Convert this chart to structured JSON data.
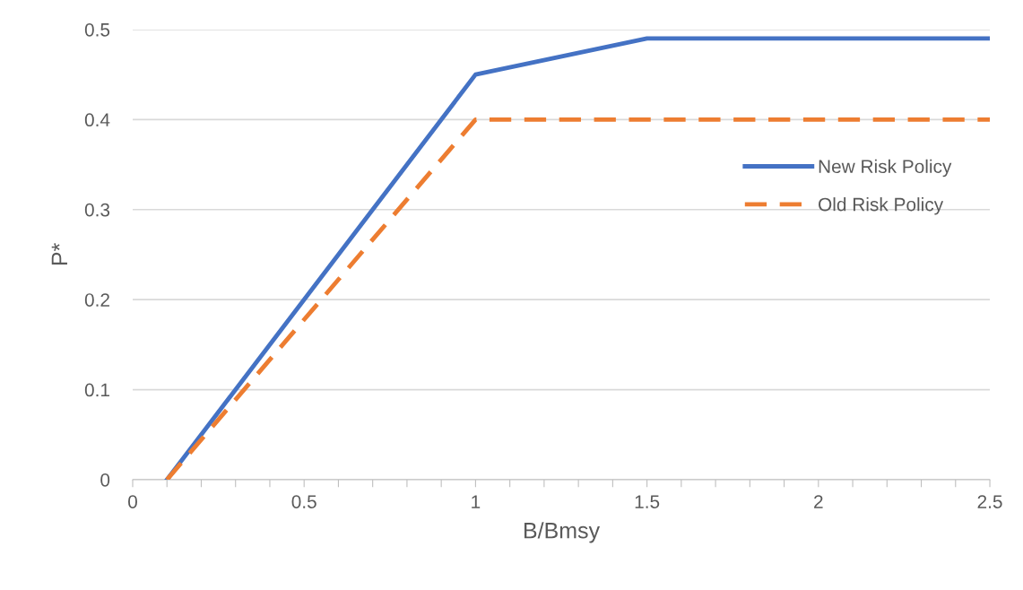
{
  "chart_data": {
    "type": "line",
    "xlabel": "B/Bmsy",
    "ylabel": "P*",
    "series": [
      {
        "name": "New Risk Policy",
        "color": "#4472c4",
        "line_style": "solid",
        "x": [
          0.1,
          1,
          1.5,
          2.5
        ],
        "values": [
          0,
          0.45,
          0.49,
          0.49
        ]
      },
      {
        "name": "Old Risk Policy",
        "color": "#ed7d31",
        "line_style": "dashed",
        "x": [
          0.1,
          1,
          2.5
        ],
        "values": [
          0,
          0.4,
          0.4
        ]
      }
    ],
    "xlim": [
      0,
      2.5
    ],
    "ylim": [
      0,
      0.5
    ],
    "xticks": [
      0,
      {
        "value": 0.1,
        "label": null
      },
      {
        "value": 0.2,
        "label": null
      },
      {
        "value": 0.3,
        "label": null
      },
      {
        "value": 0.4,
        "label": null
      },
      0.5,
      {
        "value": 0.6,
        "label": null
      },
      {
        "value": 0.7,
        "label": null
      },
      {
        "value": 0.8,
        "label": null
      },
      {
        "value": 0.9,
        "label": null
      },
      1,
      {
        "value": 1.1,
        "label": null
      },
      {
        "value": 1.2,
        "label": null
      },
      {
        "value": 1.3,
        "label": null
      },
      {
        "value": 1.4,
        "label": null
      },
      1.5,
      {
        "value": 1.6,
        "label": null
      },
      {
        "value": 1.7,
        "label": null
      },
      {
        "value": 1.8,
        "label": null
      },
      {
        "value": 1.9,
        "label": null
      },
      2,
      {
        "value": 2.1,
        "label": null
      },
      {
        "value": 2.2,
        "label": null
      },
      {
        "value": 2.3,
        "label": null
      },
      {
        "value": 2.4,
        "label": null
      },
      2.5
    ],
    "yticks": [
      0,
      0.1,
      0.2,
      0.3,
      0.4,
      0.5
    ],
    "grid": "y",
    "legend": "right",
    "marker": "none"
  }
}
